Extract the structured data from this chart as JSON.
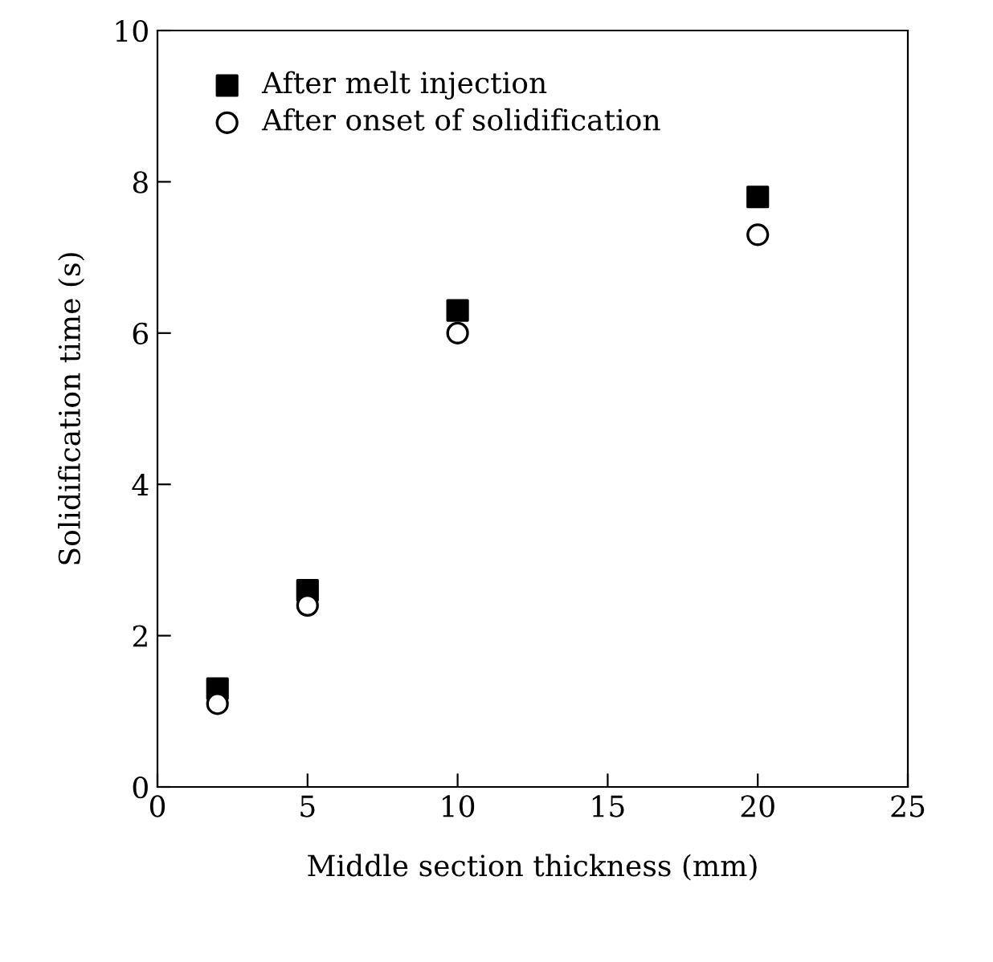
{
  "chart_data": {
    "type": "scatter",
    "xlabel": "Middle section thickness (mm)",
    "ylabel": "Solidification time (s)",
    "x": [
      2,
      5,
      10,
      20
    ],
    "series": [
      {
        "name": "After melt injection",
        "color": "#000000",
        "marker": "square",
        "values": [
          1.3,
          2.6,
          6.3,
          7.8
        ]
      },
      {
        "name": "After onset of solidification",
        "color": "#000000",
        "marker": "circle",
        "values": [
          1.1,
          2.4,
          6.0,
          7.3
        ]
      }
    ],
    "xlim": [
      0,
      25
    ],
    "xticks": [
      0,
      5,
      10,
      15,
      20,
      25
    ],
    "ylim": [
      0,
      10
    ],
    "yticks": [
      0,
      2,
      4,
      6,
      8,
      10
    ],
    "grid": false,
    "legend": "top left"
  }
}
